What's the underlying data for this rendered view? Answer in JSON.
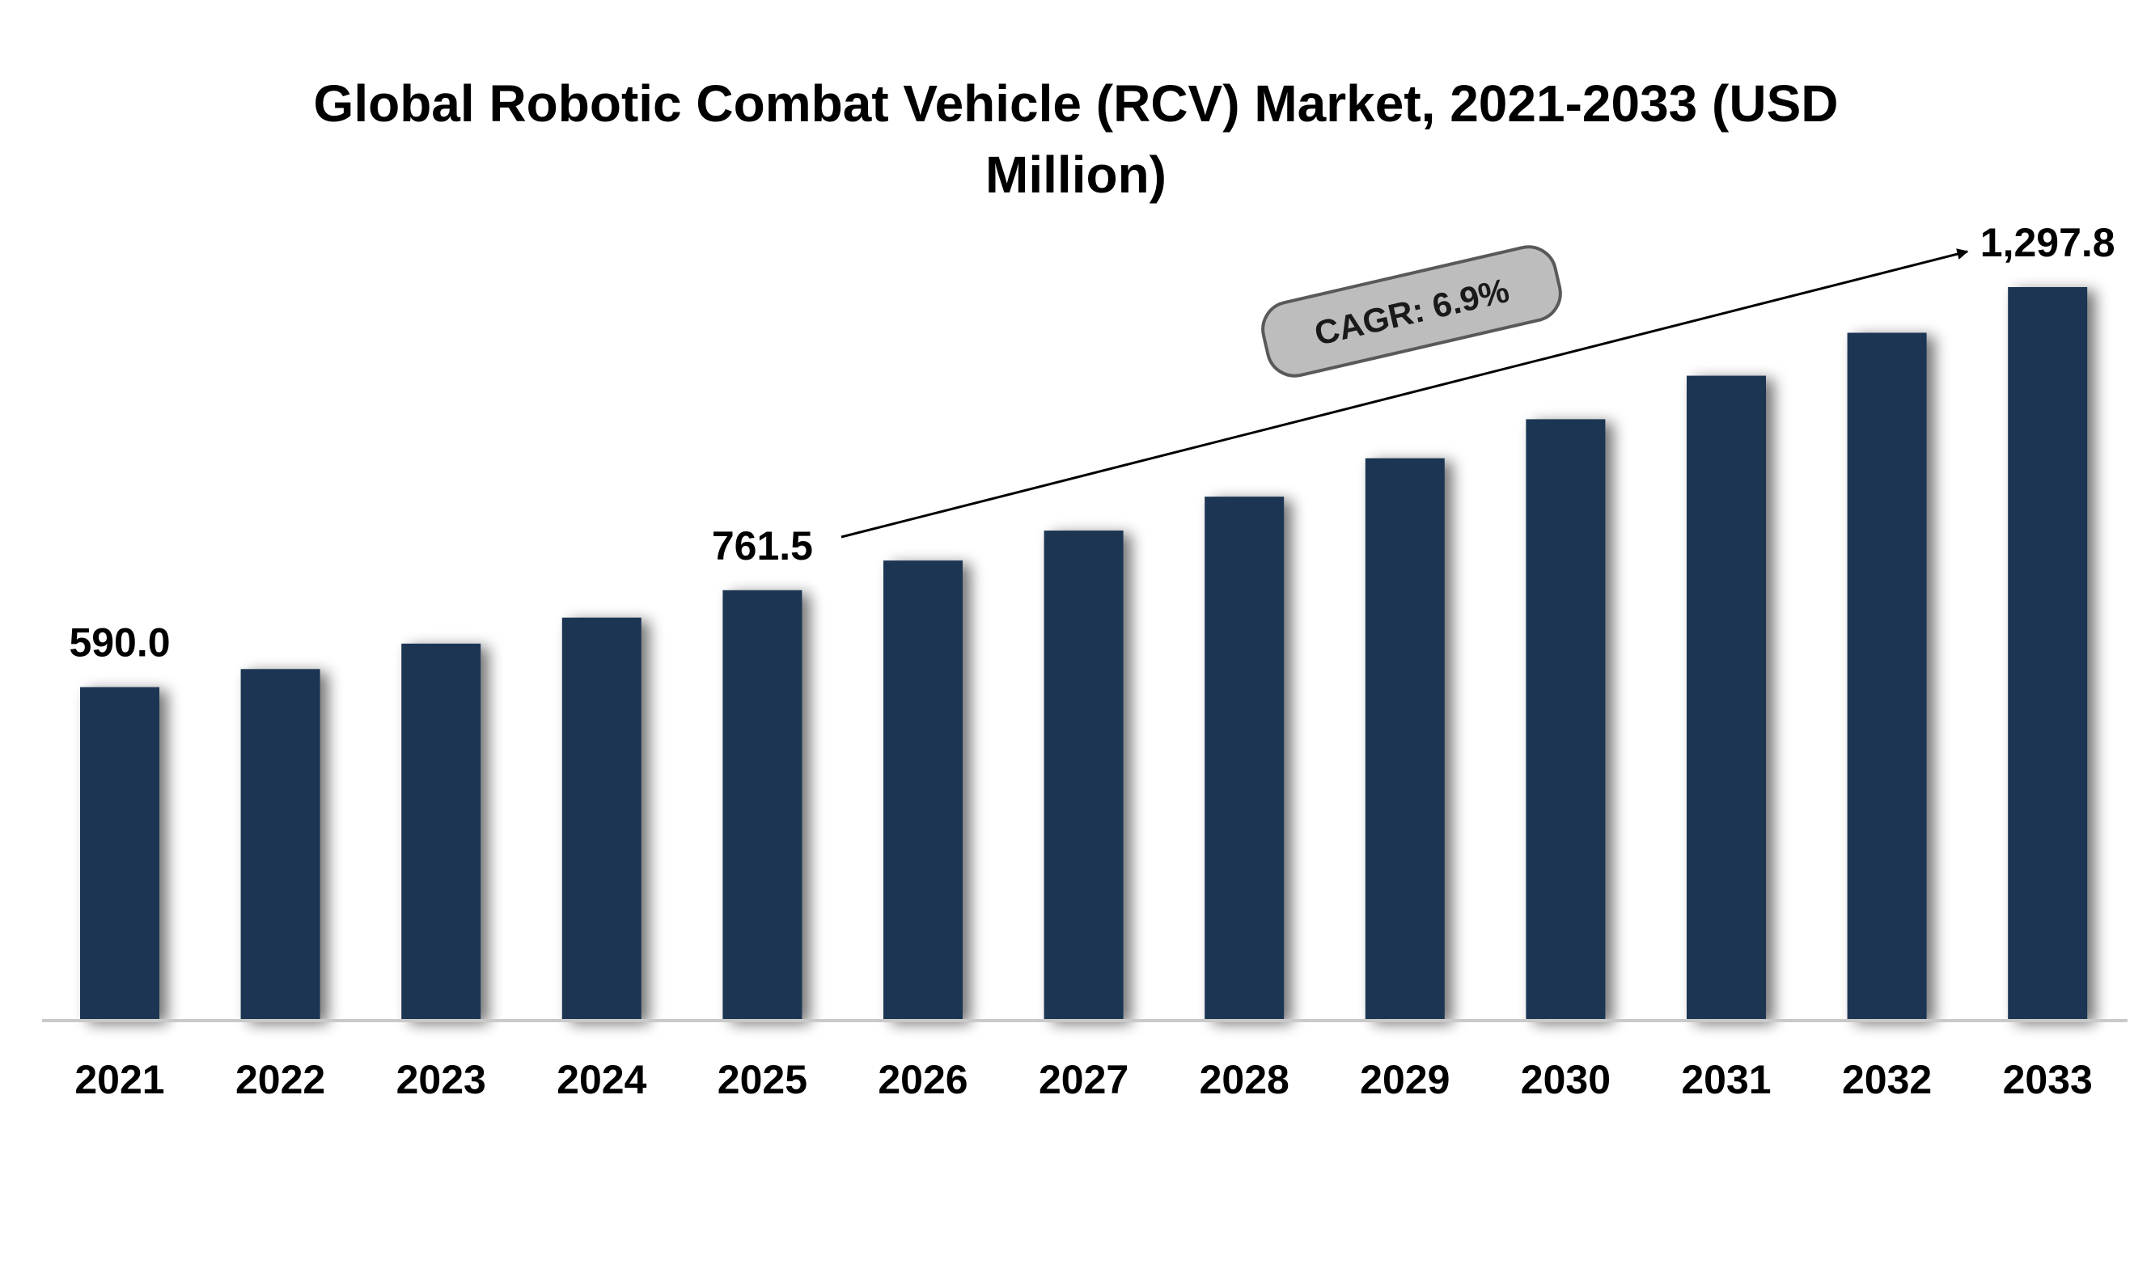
{
  "chart_data": {
    "type": "bar",
    "title_lines": [
      "Global Robotic Combat Vehicle (RCV) Market, 2021-2033 (USD",
      "Million)"
    ],
    "categories": [
      "2021",
      "2022",
      "2023",
      "2024",
      "2025",
      "2026",
      "2027",
      "2028",
      "2029",
      "2030",
      "2031",
      "2032",
      "2033"
    ],
    "values": [
      590.0,
      622.0,
      667.0,
      713.0,
      761.5,
      814.0,
      867.0,
      927.0,
      995.0,
      1064.0,
      1141.0,
      1217.0,
      1297.8
    ],
    "data_labels": [
      {
        "category": "2021",
        "text": "590.0"
      },
      {
        "category": "2025",
        "text": "761.5"
      },
      {
        "category": "2033",
        "text": "1,297.8"
      }
    ],
    "annotation": {
      "text": "CAGR: 6.9%",
      "from": "2025",
      "to": "2033"
    },
    "ylim": [
      0,
      1330
    ],
    "bar_color": "#1b3553",
    "grid": false,
    "legend": "none"
  }
}
